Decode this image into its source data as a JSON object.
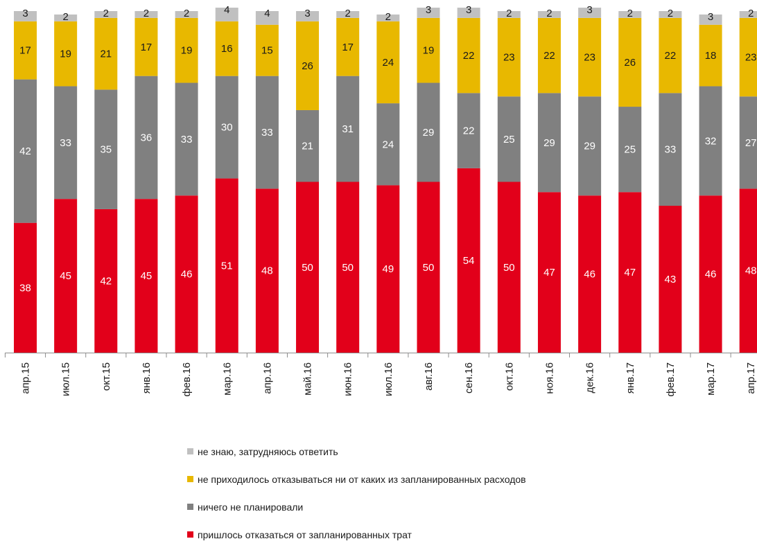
{
  "chart_data": {
    "type": "bar",
    "stacked": true,
    "categories": [
      "апр.15",
      "июл.15",
      "окт.15",
      "янв.16",
      "фев.16",
      "мар.16",
      "апр.16",
      "май.16",
      "июн.16",
      "июл.16",
      "авг.16",
      "сен.16",
      "окт.16",
      "ноя.16",
      "дек.16",
      "янв.17",
      "фев.17",
      "мар.17",
      "апр.17"
    ],
    "series": [
      {
        "name": "пришлось отказаться от запланированных трат",
        "color": "#e2001a",
        "values": [
          38,
          45,
          42,
          45,
          46,
          51,
          48,
          50,
          50,
          49,
          50,
          54,
          50,
          47,
          46,
          47,
          43,
          46,
          48
        ]
      },
      {
        "name": "ничего не планировали",
        "color": "#808080",
        "values": [
          42,
          33,
          35,
          36,
          33,
          30,
          33,
          21,
          31,
          24,
          29,
          22,
          25,
          29,
          29,
          25,
          33,
          32,
          27
        ]
      },
      {
        "name": "не приходилось отказываться ни от каких из запланированных расходов",
        "color": "#e8b800",
        "values": [
          17,
          19,
          21,
          17,
          19,
          16,
          15,
          26,
          17,
          24,
          19,
          22,
          23,
          22,
          23,
          26,
          22,
          18,
          23
        ]
      },
      {
        "name": "не знаю, затрудняюсь ответить",
        "color": "#c0c0c0",
        "values": [
          3,
          2,
          2,
          2,
          2,
          4,
          4,
          3,
          2,
          2,
          3,
          3,
          2,
          2,
          3,
          2,
          2,
          3,
          2
        ]
      }
    ],
    "legend_position": "bottom",
    "grid": false,
    "data_labels": true
  },
  "legend": [
    {
      "label": "не знаю, затрудняюсь ответить",
      "color": "#c0c0c0"
    },
    {
      "label": "не приходилось отказываться ни от каких из запланированных расходов",
      "color": "#e8b800"
    },
    {
      "label": "ничего не планировали",
      "color": "#808080"
    },
    {
      "label": "пришлось отказаться от запланированных трат",
      "color": "#e2001a"
    }
  ]
}
